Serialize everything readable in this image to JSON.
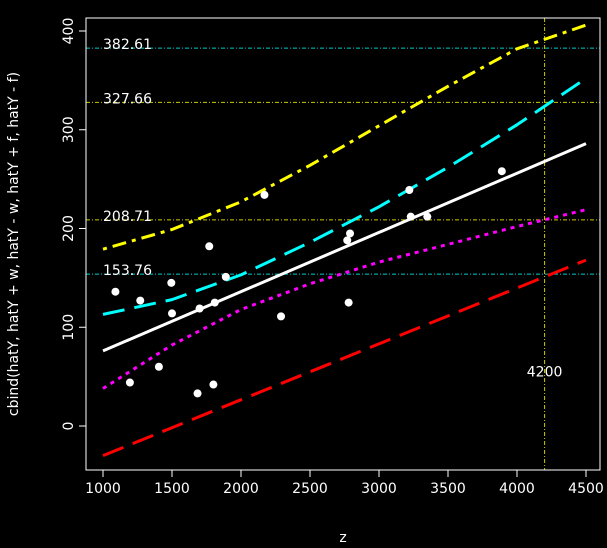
{
  "chart_data": {
    "type": "scatter",
    "title": "",
    "xlabel": "z",
    "ylabel": "cbind(hatY, hatY + w, hatY - w, hatY + f, hatY - f)",
    "xlim": [
      1000,
      4500
    ],
    "ylim": [
      -25,
      410
    ],
    "x_ticks": [
      1000,
      1500,
      2000,
      2500,
      3000,
      3500,
      4000,
      4500
    ],
    "y_ticks": [
      0,
      100,
      200,
      300,
      400
    ],
    "grid": false,
    "background": "#000000",
    "foreground": "#ffffff",
    "points": [
      {
        "x": 1090,
        "y": 136
      },
      {
        "x": 1195,
        "y": 44
      },
      {
        "x": 1270,
        "y": 127
      },
      {
        "x": 1405,
        "y": 60
      },
      {
        "x": 1495,
        "y": 145
      },
      {
        "x": 1500,
        "y": 114
      },
      {
        "x": 1685,
        "y": 33
      },
      {
        "x": 1700,
        "y": 119
      },
      {
        "x": 1770,
        "y": 182
      },
      {
        "x": 1800,
        "y": 42
      },
      {
        "x": 1810,
        "y": 125
      },
      {
        "x": 1890,
        "y": 151
      },
      {
        "x": 2170,
        "y": 234
      },
      {
        "x": 2290,
        "y": 111
      },
      {
        "x": 2770,
        "y": 188
      },
      {
        "x": 2780,
        "y": 125
      },
      {
        "x": 2790,
        "y": 195
      },
      {
        "x": 3220,
        "y": 239
      },
      {
        "x": 3230,
        "y": 212
      },
      {
        "x": 3350,
        "y": 212
      },
      {
        "x": 3890,
        "y": 258
      }
    ],
    "series": [
      {
        "color": "#ffffff",
        "dash": "solid",
        "x": [
          1000,
          4500
        ],
        "y": [
          76,
          286
        ]
      },
      {
        "color": "#00ffff",
        "dash": "long-dash",
        "x": [
          1000,
          1500,
          2000,
          2500,
          3000,
          3500,
          4000,
          4500
        ],
        "y": [
          113,
          128,
          153,
          186,
          222,
          262,
          305,
          352
        ]
      },
      {
        "color": "#ff00ff",
        "dash": "dotted",
        "x": [
          1000,
          1500,
          2000,
          2500,
          3000,
          3500,
          4000,
          4500
        ],
        "y": [
          38,
          82,
          118,
          144,
          166,
          184,
          202,
          219
        ]
      },
      {
        "color": "#ffff00",
        "dash": "dot-dash",
        "x": [
          1000,
          1500,
          2000,
          2500,
          3000,
          3500,
          4000,
          4500
        ],
        "y": [
          179,
          199,
          227,
          264,
          304,
          344,
          382,
          406
        ]
      },
      {
        "color": "#ff0000",
        "dash": "long-dash",
        "x": [
          1000,
          4500
        ],
        "y": [
          -30,
          168
        ]
      }
    ],
    "reference_lines": [
      {
        "orientation": "horizontal",
        "value": 382.61,
        "label": "382.61",
        "color": "#00cccc"
      },
      {
        "orientation": "horizontal",
        "value": 327.66,
        "label": "327.66",
        "color": "#cccc00"
      },
      {
        "orientation": "horizontal",
        "value": 208.71,
        "label": "208.71",
        "color": "#cccc00"
      },
      {
        "orientation": "horizontal",
        "value": 153.76,
        "label": "153.76",
        "color": "#00cccc"
      },
      {
        "orientation": "vertical",
        "value": 4200,
        "label": "4200",
        "label_y": 50,
        "color": "#cccc00"
      }
    ]
  }
}
